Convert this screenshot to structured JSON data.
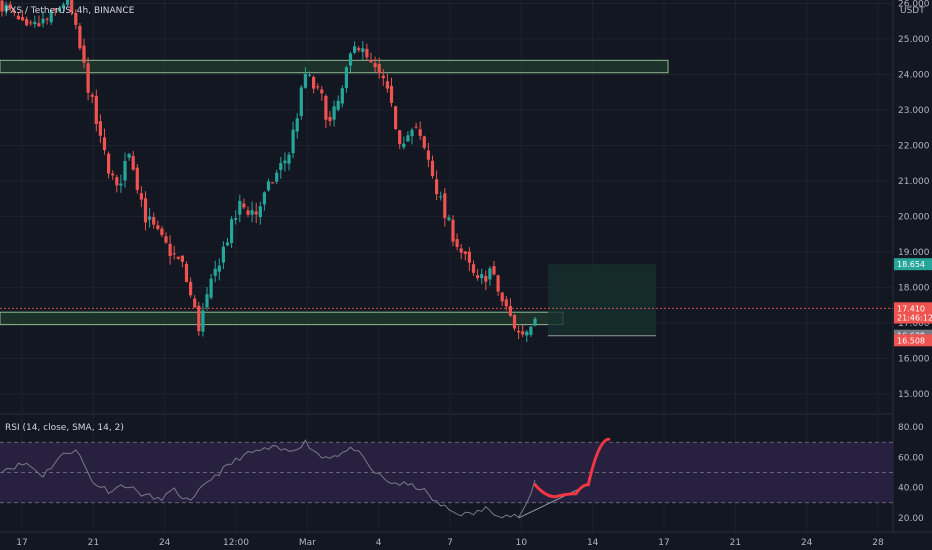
{
  "header": {
    "symbol_line": "FXS / TetherUS, 4h, BINANCE",
    "rsi_legend": "RSI (14, close, SMA, 14, 2)",
    "currency": "USDT"
  },
  "colors": {
    "background": "#131722",
    "up": "#26a69a",
    "down": "#ef5350",
    "zone_fill": "#1f3b2e",
    "zone_border": "#8fbc8f",
    "rsi_band": "#2a2141",
    "rsi_line": "#787b86",
    "annotation": "#f23645",
    "target_box": "#17302e"
  },
  "chart_data": [
    {
      "type": "candlestick",
      "title": "",
      "x": [
        "17",
        "21",
        "24",
        "12:00",
        "Mar",
        "4",
        "7",
        "10",
        "14",
        "17",
        "21",
        "24",
        "28"
      ],
      "ylim": [
        14.6,
        26.1
      ],
      "yticks": [
        15,
        16,
        17,
        18,
        19,
        20,
        21,
        22,
        23,
        24,
        25,
        26
      ],
      "ytick_labels": [
        "15.000",
        "16.000",
        "17.000",
        "18.000",
        "19.000",
        "20.000",
        "21.000",
        "22.000",
        "23.000",
        "24.000",
        "25.000",
        "26.000"
      ],
      "grid": true,
      "price_path": [
        [
          0,
          26.0
        ],
        [
          6,
          25.2
        ],
        [
          12,
          25.6
        ],
        [
          16,
          26.2
        ],
        [
          20,
          24.2
        ],
        [
          24,
          22.1
        ],
        [
          28,
          20.7
        ],
        [
          31,
          21.9
        ],
        [
          35,
          20.0
        ],
        [
          39,
          19.3
        ],
        [
          44,
          18.6
        ],
        [
          48,
          16.9
        ],
        [
          53,
          18.8
        ],
        [
          58,
          20.3
        ],
        [
          62,
          20.1
        ],
        [
          66,
          21.0
        ],
        [
          70,
          21.8
        ],
        [
          74,
          24.0
        ],
        [
          78,
          23.3
        ],
        [
          80,
          22.6
        ],
        [
          83,
          23.5
        ],
        [
          86,
          25.0
        ],
        [
          90,
          24.2
        ],
        [
          93,
          23.8
        ],
        [
          97,
          22.2
        ],
        [
          101,
          22.4
        ],
        [
          104,
          21.6
        ],
        [
          108,
          20.0
        ],
        [
          112,
          19.0
        ],
        [
          116,
          18.1
        ],
        [
          119,
          18.5
        ],
        [
          122,
          17.6
        ],
        [
          126,
          16.7
        ],
        [
          128,
          16.8
        ],
        [
          130,
          17.3
        ]
      ],
      "support_zone": [
        16.95,
        17.3
      ],
      "resistance_zone": [
        24.05,
        24.4
      ],
      "target_box": {
        "top": 18.654,
        "bottom": 16.638
      },
      "price_tags": [
        {
          "label": "18.654",
          "value": 18.654,
          "color": "#26a69a"
        },
        {
          "label": "17.410",
          "value": 17.41,
          "color": "#ef5350"
        },
        {
          "label": "21:46:12",
          "value": 17.15,
          "color": "#ef5350"
        },
        {
          "label": "16.638",
          "value": 16.638,
          "color": "#787b86"
        },
        {
          "label": "16.508",
          "value": 16.508,
          "color": "#ef5350"
        }
      ]
    },
    {
      "type": "line",
      "title": "",
      "name": "RSI (14, close, SMA, 14, 2)",
      "ylim": [
        14,
        86
      ],
      "yticks": [
        20,
        40,
        60,
        80
      ],
      "ytick_labels": [
        "20.00",
        "40.00",
        "60.00",
        "80.00"
      ],
      "band": [
        30,
        70
      ],
      "mid": 50,
      "rsi_path": [
        [
          0,
          52
        ],
        [
          6,
          56
        ],
        [
          10,
          48
        ],
        [
          14,
          60
        ],
        [
          18,
          66
        ],
        [
          22,
          44
        ],
        [
          26,
          38
        ],
        [
          30,
          42
        ],
        [
          34,
          36
        ],
        [
          38,
          32
        ],
        [
          42,
          38
        ],
        [
          46,
          30
        ],
        [
          50,
          44
        ],
        [
          54,
          52
        ],
        [
          58,
          60
        ],
        [
          62,
          64
        ],
        [
          66,
          66
        ],
        [
          70,
          64
        ],
        [
          74,
          70
        ],
        [
          78,
          60
        ],
        [
          82,
          62
        ],
        [
          86,
          66
        ],
        [
          90,
          52
        ],
        [
          94,
          44
        ],
        [
          98,
          42
        ],
        [
          102,
          40
        ],
        [
          106,
          30
        ],
        [
          110,
          24
        ],
        [
          114,
          22
        ],
        [
          118,
          26
        ],
        [
          122,
          22
        ],
        [
          126,
          21
        ],
        [
          128,
          28
        ],
        [
          130,
          44
        ]
      ],
      "annotation_path": [
        [
          130,
          42
        ],
        [
          135,
          34
        ],
        [
          140,
          36
        ],
        [
          143,
          42
        ],
        [
          148,
          72
        ]
      ]
    }
  ]
}
